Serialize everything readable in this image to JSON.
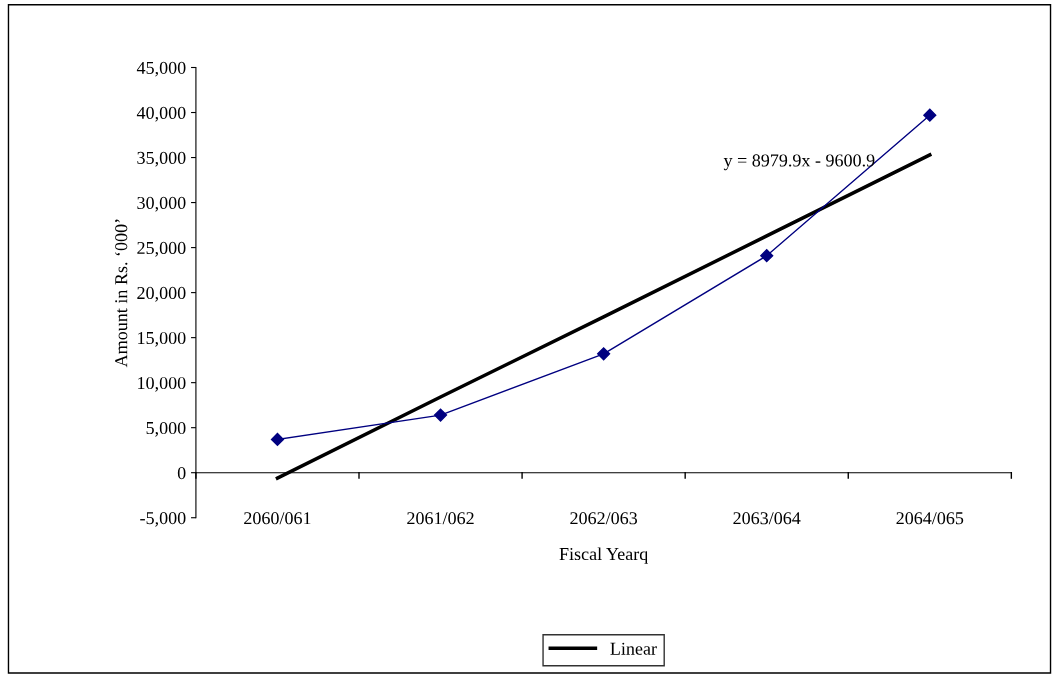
{
  "chart_data": {
    "type": "line",
    "xlabel": "Fiscal Yearq",
    "ylabel": "Amount in Rs. ‘000’",
    "categories": [
      "2060/061",
      "2061/062",
      "2062/063",
      "2063/064",
      "2064/065"
    ],
    "series": [
      {
        "color": "#000080",
        "values": [
          3700,
          6400,
          13200,
          24100,
          39700
        ],
        "marker": "diamond"
      },
      {
        "name": "Linear",
        "color": "#000000",
        "values": [
          -600,
          8400,
          17300,
          26300,
          35300
        ],
        "marker": "none"
      }
    ],
    "ylim": [
      -5000,
      45000
    ],
    "yticks": [
      {
        "value": -5000,
        "label": "-5,000"
      },
      0,
      {
        "value": 5000,
        "label": "5,000"
      },
      {
        "value": 10000,
        "label": "10,000"
      },
      {
        "value": 15000,
        "label": "15,000"
      },
      {
        "value": 20000,
        "label": "20,000"
      },
      {
        "value": 25000,
        "label": "25,000"
      },
      {
        "value": 30000,
        "label": "30,000"
      },
      {
        "value": 35000,
        "label": "35,000"
      },
      {
        "value": 40000,
        "label": "40,000"
      },
      {
        "value": 45000,
        "label": "45,000"
      }
    ],
    "annotations": [
      "y = 8979.9x - 9600.9"
    ],
    "legend": "bottom"
  }
}
